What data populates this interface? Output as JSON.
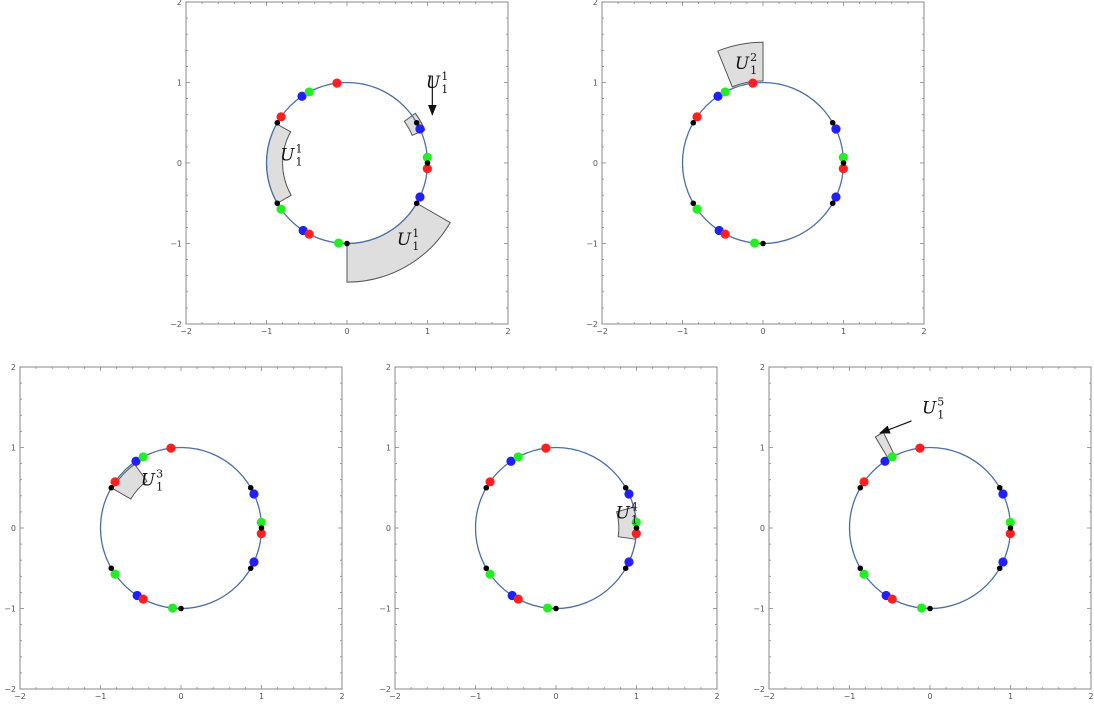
{
  "figure": {
    "axis": {
      "xlim": [
        -2,
        2
      ],
      "ylim": [
        -2,
        2
      ],
      "tick_labels": [
        "-2",
        "-1",
        "0",
        "1",
        "2"
      ]
    },
    "circle_color": "#4a6fa5",
    "frame_color": "#888888",
    "region_fill": "#dedede",
    "region_stroke": "#555555",
    "marker_colors": {
      "red": "#ff1f1f",
      "blue": "#1f1fff",
      "green": "#22ee22",
      "black": "#000000"
    },
    "points": [
      {
        "color": "black",
        "angle": 0
      },
      {
        "color": "red",
        "angle": 97.2
      },
      {
        "color": "black",
        "angle": 30
      },
      {
        "color": "blue",
        "angle": 25
      },
      {
        "color": "black",
        "angle": 150
      },
      {
        "color": "red",
        "angle": 145
      },
      {
        "color": "black",
        "angle": 210
      },
      {
        "color": "green",
        "angle": 215
      },
      {
        "color": "black",
        "angle": 330
      },
      {
        "color": "blue",
        "angle": 335
      },
      {
        "color": "black",
        "angle": 270
      },
      {
        "color": "green",
        "angle": 264
      },
      {
        "color": "red",
        "angle": 356
      },
      {
        "color": "green",
        "angle": 4
      },
      {
        "color": "blue",
        "angle": 124
      },
      {
        "color": "green",
        "angle": 118
      },
      {
        "color": "blue",
        "angle": 237
      },
      {
        "color": "red",
        "angle": 242
      }
    ],
    "panels": [
      {
        "id": "panel-1",
        "labels": [
          {
            "base": "U",
            "sub": "1",
            "sup": "1"
          },
          {
            "base": "U",
            "sub": "1",
            "sup": "1"
          },
          {
            "base": "U",
            "sub": "1",
            "sup": "1"
          }
        ]
      },
      {
        "id": "panel-2",
        "labels": [
          {
            "base": "U",
            "sub": "1",
            "sup": "2"
          }
        ]
      },
      {
        "id": "panel-3",
        "labels": [
          {
            "base": "U",
            "sub": "1",
            "sup": "3"
          }
        ]
      },
      {
        "id": "panel-4",
        "labels": [
          {
            "base": "U",
            "sub": "1",
            "sup": "4"
          }
        ]
      },
      {
        "id": "panel-5",
        "labels": [
          {
            "base": "U",
            "sub": "1",
            "sup": "5"
          }
        ]
      }
    ]
  }
}
